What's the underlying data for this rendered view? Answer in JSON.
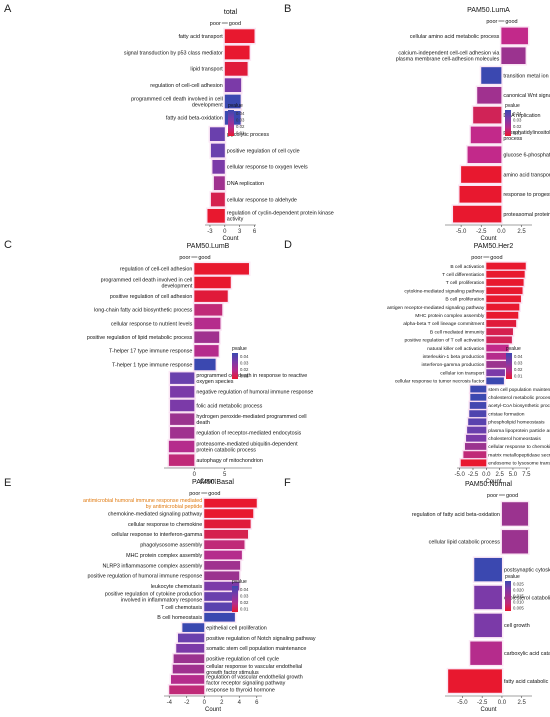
{
  "chart_data": [
    {
      "panel": "A",
      "type": "bar",
      "title": "total",
      "xlabel": "Count",
      "direction": {
        "left": "poor",
        "right": "good"
      },
      "xticks": [
        -3,
        0,
        3,
        6
      ],
      "xlim": [
        -4,
        6.3
      ],
      "legend": {
        "title": "pvalue",
        "labels": [
          "0.04",
          "0.03",
          "0.02",
          "0.01"
        ],
        "colors": [
          "#3b48b0",
          "#7b3aa8",
          "#b52c8c",
          "#e8182f"
        ]
      },
      "categories": [
        "fatty acid transport",
        "signal transduction by p53 class mediator",
        "lipid transport",
        "regulation of cell-cell adhesion",
        "programmed cell death involved in cell development",
        "fatty acid beta-oxidation",
        "glycolytic process",
        "positive regulation of cell cycle",
        "cellular response to oxygen levels",
        "DNA replication",
        "cellular response to aldehyde",
        "regulation of cyclin-dependent protein kinase activity"
      ],
      "values": [
        6,
        5,
        4.6,
        3.3,
        3.2,
        3.2,
        -3,
        -2.8,
        -2.5,
        -2.2,
        -2.8,
        -3.5
      ],
      "colors": [
        "#e8182f",
        "#e8182f",
        "#e01a3a",
        "#7b3aa8",
        "#3b48b0",
        "#3b48b0",
        "#6a40ad",
        "#6a40ad",
        "#7b3aa8",
        "#a0318f",
        "#d5204f",
        "#e8182f"
      ]
    },
    {
      "panel": "B",
      "type": "bar",
      "title": "PAM50.LumA",
      "xlabel": "Count",
      "direction": {
        "left": "poor",
        "right": "good"
      },
      "xticks": [
        -5.0,
        -2.5,
        0.0,
        2.5
      ],
      "xlim": [
        -7,
        3.8
      ],
      "legend": {
        "title": "pvalue",
        "labels": [
          "0.04",
          "0.03",
          "0.02",
          "0.01"
        ],
        "colors": [
          "#3b48b0",
          "#7b3aa8",
          "#b52c8c",
          "#e8182f"
        ]
      },
      "categories": [
        "cellular amino acid metabolic process",
        "calcium-independent cell-cell adhesion via plasma membrane cell-adhesion molecules",
        "transition metal ion transport",
        "canonical Wnt signaling pathway",
        "DNA replication",
        "phosphatidylinositol phosphate biosynthetic process",
        "glucose 6-phosphate metabolic process",
        "amino acid transport",
        "response to progesterone",
        "proteasomal protein catabolic process"
      ],
      "values": [
        3.3,
        3,
        -2.5,
        -3,
        -3.5,
        -3.8,
        -4.2,
        -5,
        -5.2,
        -6
      ],
      "colors": [
        "#c2298a",
        "#9b338f",
        "#3b48b0",
        "#a0318f",
        "#d02357",
        "#c2298a",
        "#c2298a",
        "#e8182f",
        "#e8182f",
        "#e8182f"
      ]
    },
    {
      "panel": "C",
      "type": "bar",
      "title": "PAM50.LumB",
      "xlabel": "Count",
      "direction": {
        "left": "poor",
        "right": "good"
      },
      "xticks": [
        0,
        5
      ],
      "xlim": [
        -5,
        9.5
      ],
      "legend": {
        "title": "pvalue",
        "labels": [
          "0.04",
          "0.03",
          "0.02",
          "0.01"
        ],
        "colors": [
          "#3b48b0",
          "#7b3aa8",
          "#b52c8c",
          "#e8182f"
        ]
      },
      "categories": [
        "regulation of cell-cell adhesion",
        "programmed cell death involved in cell development",
        "positive regulation of cell adhesion",
        "long-chain fatty acid biosynthetic process",
        "cellular response to nutrient levels",
        "positive regulation of lipid metabolic process",
        "T-helper 17 type immune response",
        "T-helper 1 type immune response",
        "programmed cell death in response to reactive oxygen species",
        "negative regulation of humoral immune response",
        "folic acid metabolic process",
        "hydrogen peroxide-mediated programmed cell death",
        "regulation of receptor-mediated endocytosis",
        "proteasome-mediated ubiquitin-dependent protein catabolic process",
        "autophagy of mitochondrion"
      ],
      "values": [
        9,
        6,
        5.5,
        4.6,
        4.3,
        4.1,
        4,
        3.5,
        -4,
        -4,
        -4,
        -4,
        -4,
        -4.2,
        -4.2
      ],
      "colors": [
        "#e8182f",
        "#e8182f",
        "#e01a3a",
        "#c02a78",
        "#b52c8c",
        "#a0318f",
        "#b52c8c",
        "#3b48b0",
        "#6a40ad",
        "#7b3aa8",
        "#7b3aa8",
        "#9b338f",
        "#a0318f",
        "#b52c8c",
        "#c02a78"
      ]
    },
    {
      "panel": "D",
      "type": "bar",
      "title": "PAM50.Her2",
      "xlabel": "Count",
      "direction": {
        "left": "poor",
        "right": "good"
      },
      "xticks": [
        -5.0,
        -2.5,
        0.0,
        2.5,
        5.0,
        7.5
      ],
      "xlim": [
        -5.5,
        8.2
      ],
      "legend": {
        "title": "pvalue",
        "labels": [
          "0.04",
          "0.03",
          "0.02",
          "0.01"
        ],
        "colors": [
          "#3b48b0",
          "#7b3aa8",
          "#b52c8c",
          "#e8182f"
        ]
      },
      "categories": [
        "B cell activation",
        "T cell differentiation",
        "T cell proliferation",
        "cytokine-mediated signaling pathway",
        "B cell proliferation",
        "antigen receptor-mediated signaling pathway",
        "MHC protein complex assembly",
        "alpha-beta T cell lineage commitment",
        "B cell mediated immunity",
        "positive regulation of T cell activation",
        "natural killer cell activation",
        "interleukin-1 beta production",
        "interferon-gamma production",
        "cellular ion transport",
        "cellular response to tumor necrosis factor",
        "stem cell population maintenance",
        "cholesterol metabolic process",
        "acetyl-CoA biosynthetic process",
        "cristae formation",
        "phospholipid homeostasis",
        "plasma lipoprotein particle assembly",
        "cholesterol homeostasis",
        "cellular response to chemokine",
        "matrix metallopeptidase secretion",
        "endosome to lysosome transport"
      ],
      "values": [
        7.4,
        7.2,
        7,
        6.8,
        6.5,
        6.2,
        6,
        5.6,
        5,
        4.8,
        4.2,
        4,
        3.8,
        3.5,
        3.3,
        -3,
        -3,
        -3.1,
        -3.2,
        -3.4,
        -3.6,
        -3.8,
        -4,
        -4.3,
        -4.8
      ],
      "colors": [
        "#e8182f",
        "#e8182f",
        "#e8182f",
        "#e8182f",
        "#e8182f",
        "#e8182f",
        "#e8182f",
        "#e01a3a",
        "#d5204f",
        "#d02357",
        "#c2298a",
        "#b52c8c",
        "#9b338f",
        "#7b3aa8",
        "#3b48b0",
        "#3b48b0",
        "#3b48b0",
        "#4446b0",
        "#4f44ae",
        "#5a42ae",
        "#6a40ad",
        "#7b3aa8",
        "#9b338f",
        "#c02a78",
        "#e8182f"
      ]
    },
    {
      "panel": "E",
      "type": "bar",
      "title": "PAM50.Basal",
      "xlabel": "Count",
      "direction": {
        "left": "poor",
        "right": "good"
      },
      "xticks": [
        -4,
        -2,
        0,
        2,
        4,
        6
      ],
      "xlim": [
        -4.6,
        6.6
      ],
      "legend": {
        "title": "pvalue",
        "labels": [
          "0.04",
          "0.03",
          "0.02",
          "0.01"
        ],
        "colors": [
          "#3b48b0",
          "#7b3aa8",
          "#b52c8c",
          "#e8182f"
        ]
      },
      "categories": [
        "antimicrobial humoral immune response mediated by antimicrobial peptide",
        "chemokine-mediated signaling pathway",
        "cellular response to chemokine",
        "cellular response to interferon-gamma",
        "phagolysosome assembly",
        "MHC protein complex assembly",
        "NLRP3 inflammasome complex assembly",
        "positive regulation of humoral immune response",
        "leukocyte chemotaxis",
        "positive regulation of cytokine production involved in inflammatory response",
        "T cell chemotaxis",
        "B cell homeostasis",
        "epithelial cell proliferation",
        "positive regulation of Notch signaling pathway",
        "somatic stem cell population maintenance",
        "positive regulation of cell cycle",
        "cellular response to vascular endothelial growth factor stimulus",
        "regulation of vascular endothelial growth factor receptor signaling pathway",
        "response to thyroid hormone"
      ],
      "values": [
        6,
        5.6,
        5.3,
        5,
        4.6,
        4.3,
        4.1,
        4,
        4,
        3.8,
        3.6,
        3.5,
        -2.5,
        -3,
        -3.2,
        -3.5,
        -3.6,
        -3.8,
        -4
      ],
      "colors": [
        "#e8182f",
        "#e8182f",
        "#e01a3a",
        "#d5204f",
        "#c02a78",
        "#b52c8c",
        "#a0318f",
        "#9b338f",
        "#7b3aa8",
        "#6a40ad",
        "#5a42ae",
        "#3b48b0",
        "#3b48b0",
        "#6a40ad",
        "#7b3aa8",
        "#9b338f",
        "#a0318f",
        "#b52c8c",
        "#c02a78"
      ],
      "highlight_index": 0,
      "highlight_color": "#e07a10"
    },
    {
      "panel": "F",
      "type": "bar",
      "title": "PAM50.Normal",
      "xlabel": "Count",
      "direction": {
        "left": "poor",
        "right": "good"
      },
      "xticks": [
        -5.0,
        -2.5,
        0.0,
        2.5
      ],
      "xlim": [
        -7.2,
        3.8
      ],
      "legend": {
        "title": "pvalue",
        "labels": [
          "0.025",
          "0.020",
          "0.015",
          "0.010",
          "0.005"
        ],
        "colors": [
          "#3b48b0",
          "#7b3aa8",
          "#a0318f",
          "#c02a78",
          "#e8182f"
        ]
      },
      "categories": [
        "regulation of fatty acid beta-oxidation",
        "cellular lipid catabolic process",
        "postsynaptic cytoskeleton organization",
        "cholesterol catabolic process",
        "cell growth",
        "carboxylic acid catabolic process",
        "fatty acid catabolic process"
      ],
      "values": [
        3.3,
        3.3,
        -3.5,
        -3.5,
        -3.5,
        -4,
        -6.8
      ],
      "colors": [
        "#9b338f",
        "#9b338f",
        "#3b48b0",
        "#7b3aa8",
        "#7b3aa8",
        "#b52c8c",
        "#e8182f"
      ]
    }
  ]
}
